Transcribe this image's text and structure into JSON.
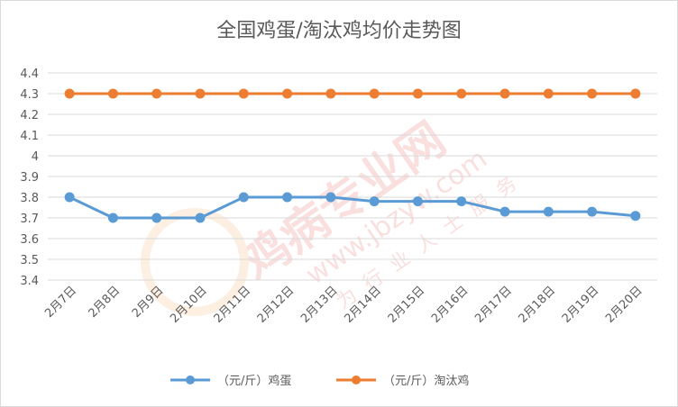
{
  "chart_data": {
    "type": "line",
    "title": "全国鸡蛋/淘汰鸡均价走势图",
    "xlabel": "",
    "ylabel": "",
    "categories": [
      "2月7日",
      "2月8日",
      "2月9日",
      "2月10日",
      "2月11日",
      "2月12日",
      "2月13日",
      "2月14日",
      "2月15日",
      "2月16日",
      "2月17日",
      "2月18日",
      "2月19日",
      "2月20日"
    ],
    "ylim": [
      3.4,
      4.4
    ],
    "yticks": [
      "3.4",
      "3.5",
      "3.6",
      "3.7",
      "3.8",
      "3.9",
      "4",
      "4.1",
      "4.2",
      "4.3",
      "4.4"
    ],
    "grid": true,
    "legend_position": "bottom",
    "series": [
      {
        "name": "（元/斤）鸡蛋",
        "color": "#5b9bd5",
        "values": [
          3.8,
          3.7,
          3.7,
          3.7,
          3.8,
          3.8,
          3.8,
          3.78,
          3.78,
          3.78,
          3.73,
          3.73,
          3.73,
          3.71
        ]
      },
      {
        "name": "（元/斤）淘汰鸡",
        "color": "#ed7d31",
        "values": [
          4.3,
          4.3,
          4.3,
          4.3,
          4.3,
          4.3,
          4.3,
          4.3,
          4.3,
          4.3,
          4.3,
          4.3,
          4.3,
          4.3
        ]
      }
    ]
  },
  "watermark": {
    "text_main": "鸡病专业网",
    "text_url": "www.jbzyw.com",
    "text_sub": "为行业人士服务"
  }
}
